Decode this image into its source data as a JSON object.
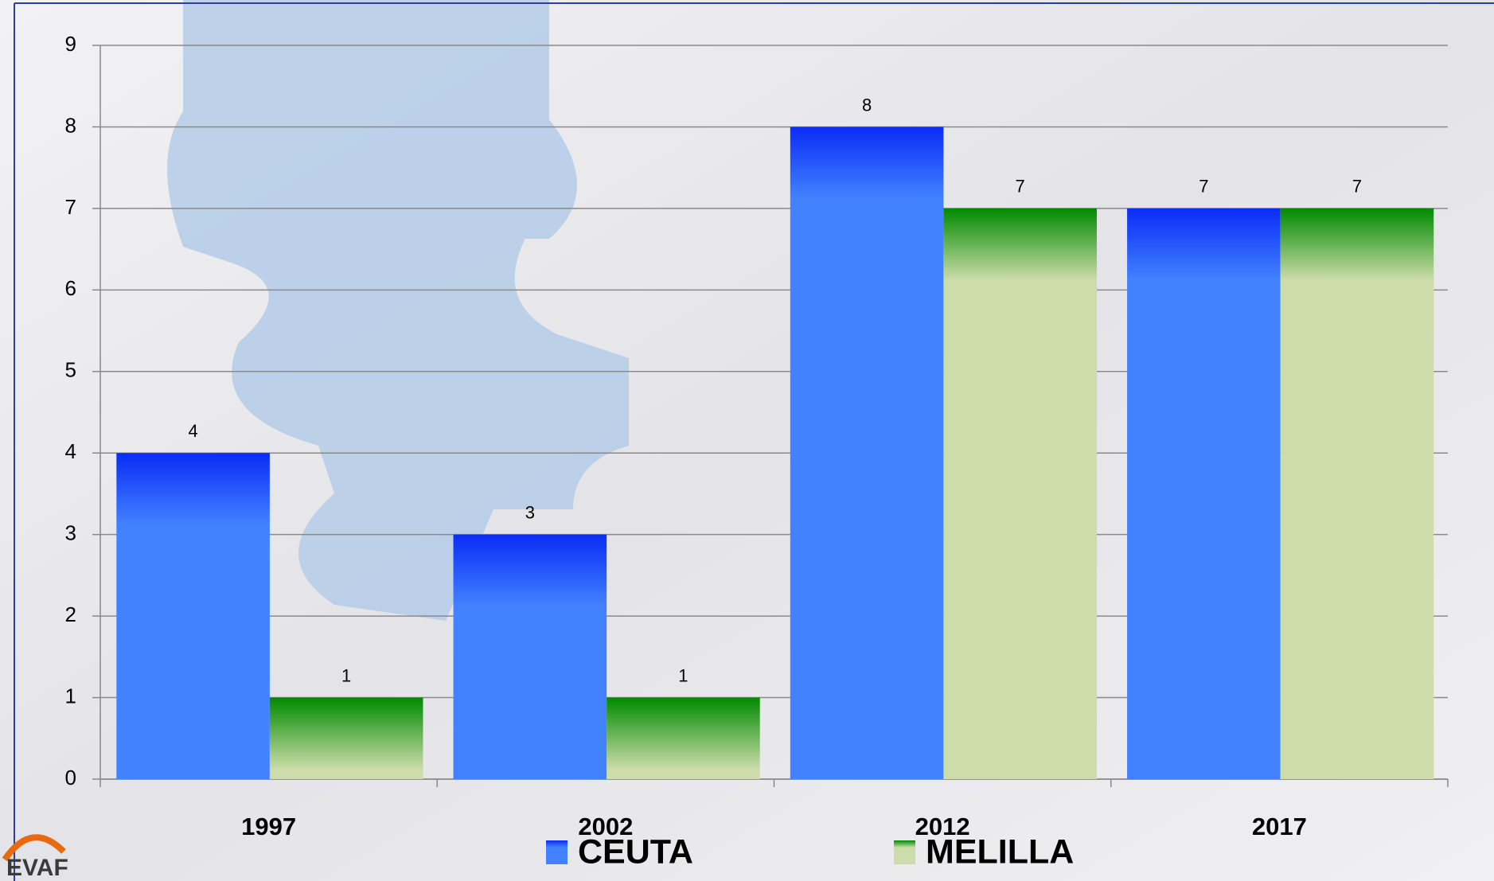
{
  "chart_data": {
    "type": "bar",
    "categories": [
      "1997",
      "2002",
      "2012",
      "2017"
    ],
    "series": [
      {
        "name": "CEUTA",
        "color": "#4282ff",
        "top_color": "#0a2cf5",
        "values": [
          4,
          3,
          8,
          7
        ]
      },
      {
        "name": "MELILLA",
        "color": "#ccdcaa",
        "top_color": "#008a00",
        "values": [
          1,
          1,
          7,
          7
        ]
      }
    ],
    "ylim": [
      0,
      9
    ],
    "yticks": [
      0,
      1,
      2,
      3,
      4,
      5,
      6,
      7,
      8,
      9
    ],
    "grid": true,
    "legend": "bottom"
  },
  "logo_text": "EVAF"
}
